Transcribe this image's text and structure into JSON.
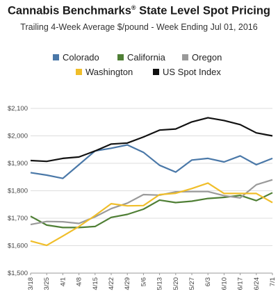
{
  "chart_data": {
    "type": "line",
    "title": "Cannabis Benchmarks",
    "title_mark": "®",
    "title_rest": " State Level Spot Pricing",
    "subtitle": "Trailing 4-Week Average $/pound - Week Ending Jul 01, 2016",
    "x": [
      "3/18",
      "3/25",
      "4/1",
      "4/8",
      "4/15",
      "4/22",
      "4/29",
      "5/6",
      "5/13",
      "5/20",
      "5/27",
      "6/3",
      "6/10",
      "6/17",
      "6/24",
      "7/1"
    ],
    "ylim": [
      1500,
      2100
    ],
    "yticks": [
      "$1,500",
      "$1,600",
      "$1,700",
      "$1,800",
      "$1,900",
      "$2,000",
      "$2,100"
    ],
    "grid": true,
    "legend_position": "top",
    "series": [
      {
        "name": "Colorado",
        "color": "#4a78a8",
        "values": [
          1866,
          1857,
          1845,
          1895,
          1945,
          1955,
          1967,
          1940,
          1893,
          1868,
          1912,
          1918,
          1905,
          1927,
          1895,
          1918
        ]
      },
      {
        "name": "California",
        "color": "#4f7f35",
        "values": [
          1707,
          1675,
          1666,
          1666,
          1670,
          1703,
          1714,
          1733,
          1766,
          1757,
          1762,
          1772,
          1776,
          1783,
          1764,
          1793
        ]
      },
      {
        "name": "Oregon",
        "color": "#9a9a9a",
        "values": [
          1677,
          1688,
          1687,
          1681,
          1705,
          1735,
          1755,
          1786,
          1784,
          1796,
          1797,
          1797,
          1782,
          1774,
          1822,
          1840
        ]
      },
      {
        "name": "Washington",
        "color": "#f0be2a",
        "values": [
          1617,
          1601,
          1635,
          1670,
          1710,
          1753,
          1745,
          1746,
          1786,
          1791,
          1808,
          1828,
          1790,
          1790,
          1790,
          1757
        ]
      },
      {
        "name": "US Spot Index",
        "color": "#111111",
        "values": [
          1910,
          1907,
          1918,
          1923,
          1945,
          1970,
          1974,
          1996,
          2021,
          2025,
          2051,
          2066,
          2056,
          2041,
          2011,
          2000
        ]
      }
    ]
  }
}
